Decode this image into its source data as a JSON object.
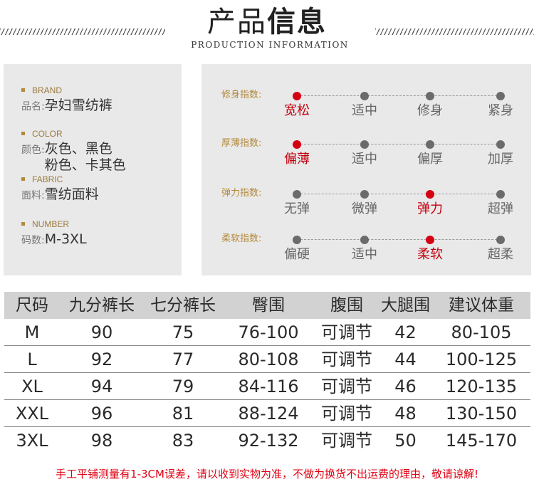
{
  "header": {
    "title_part1": "产品",
    "title_part2": "信息",
    "subtitle": "PRODUCTION INFORMATION"
  },
  "info": [
    {
      "en": "BRAND",
      "label": "品名:",
      "lines": [
        "孕妇雪纺裤"
      ]
    },
    {
      "en": "COLOR",
      "label": "颜色:",
      "lines": [
        "灰色、黑色",
        "粉色、卡其色"
      ]
    },
    {
      "en": "FABRIC",
      "label": "面料:",
      "lines": [
        "雪纺面料"
      ]
    },
    {
      "en": "NUMBER",
      "label": "码数:",
      "lines": [
        "M-3XL"
      ]
    }
  ],
  "indexes": [
    {
      "label": "修身指数:",
      "options": [
        "宽松",
        "适中",
        "修身",
        "紧身"
      ],
      "selected": 0
    },
    {
      "label": "厚薄指数:",
      "options": [
        "偏薄",
        "适中",
        "偏厚",
        "加厚"
      ],
      "selected": 0
    },
    {
      "label": "弹力指数:",
      "options": [
        "无弹",
        "微弹",
        "弹力",
        "超弹"
      ],
      "selected": 2
    },
    {
      "label": "柔软指数:",
      "options": [
        "偏硬",
        "适中",
        "柔软",
        "超柔"
      ],
      "selected": 2
    }
  ],
  "table": {
    "headers": [
      "尺码",
      "九分裤长",
      "七分裤长",
      "臀围",
      "腹围",
      "大腿围",
      "建议体重"
    ],
    "rows": [
      [
        "M",
        "90",
        "75",
        "76-100",
        "可调节",
        "42",
        "80-105"
      ],
      [
        "L",
        "92",
        "77",
        "80-108",
        "可调节",
        "44",
        "100-125"
      ],
      [
        "XL",
        "94",
        "79",
        "84-116",
        "可调节",
        "46",
        "120-135"
      ],
      [
        "XXL",
        "96",
        "81",
        "88-124",
        "可调节",
        "48",
        "130-150"
      ],
      [
        "3XL",
        "98",
        "83",
        "92-132",
        "可调节",
        "50",
        "145-170"
      ]
    ]
  },
  "note": "手工平铺测量有1-3CM误差，请以收到实物为准，不做为换货不出运费的理由，敬请谅解!",
  "colors": {
    "accent_red": "#d40012",
    "label_gold": "#b38a3c",
    "panel_bg": "#e9e9e9"
  }
}
